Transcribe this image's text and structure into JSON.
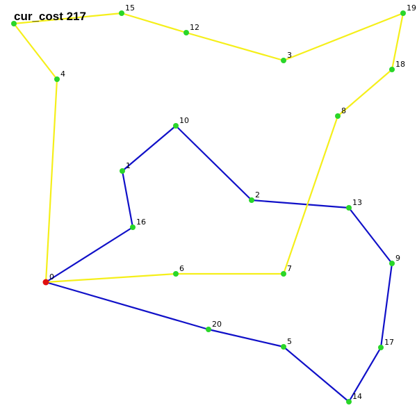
{
  "cost_text": "cur_cost 217",
  "colors": {
    "route_a": "#1010c8",
    "route_b": "#f5ef1a",
    "node_fill": "#29d629",
    "depot_fill": "#e01010"
  },
  "depot": "0",
  "nodes": [
    {
      "id": "0",
      "label": "0"
    },
    {
      "id": "1",
      "label": "1"
    },
    {
      "id": "2",
      "label": "2"
    },
    {
      "id": "3",
      "label": "3"
    },
    {
      "id": "4",
      "label": "4"
    },
    {
      "id": "5",
      "label": "5"
    },
    {
      "id": "6",
      "label": "6"
    },
    {
      "id": "7",
      "label": "7"
    },
    {
      "id": "8",
      "label": "8"
    },
    {
      "id": "9",
      "label": "9"
    },
    {
      "id": "10",
      "label": "10"
    },
    {
      "id": "12",
      "label": "12"
    },
    {
      "id": "13",
      "label": "13"
    },
    {
      "id": "14",
      "label": "14"
    },
    {
      "id": "15",
      "label": "15"
    },
    {
      "id": "16",
      "label": "16"
    },
    {
      "id": "17",
      "label": "17"
    },
    {
      "id": "18",
      "label": "18"
    },
    {
      "id": "19",
      "label": "19"
    },
    {
      "id": "20",
      "label": "20"
    },
    {
      "id": "21",
      "label": ""
    }
  ],
  "routes": [
    {
      "color_key": "route_a",
      "path": [
        "0",
        "16",
        "1",
        "10",
        "2",
        "13",
        "9",
        "17",
        "14",
        "5",
        "20",
        "0"
      ]
    },
    {
      "color_key": "route_b",
      "path": [
        "0",
        "6",
        "7",
        "8",
        "18",
        "19",
        "3",
        "12",
        "15",
        "21",
        "4",
        "0"
      ]
    }
  ]
}
